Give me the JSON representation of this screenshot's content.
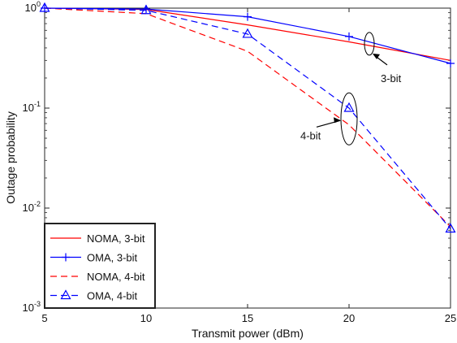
{
  "chart_data": {
    "type": "line",
    "title": "",
    "xlabel": "Transmit power (dBm)",
    "ylabel": "Outage probability",
    "x": [
      5,
      10,
      15,
      20,
      25
    ],
    "xlim": [
      5,
      25
    ],
    "ylim": [
      0.001,
      1
    ],
    "yscale": "log",
    "xticks": [
      "5",
      "10",
      "15",
      "20",
      "25"
    ],
    "yticks": [
      {
        "base": "10",
        "exp": "-3"
      },
      {
        "base": "10",
        "exp": "-2"
      },
      {
        "base": "10",
        "exp": "-1"
      },
      {
        "base": "10",
        "exp": "0"
      }
    ],
    "grid": false,
    "legend_position": "bottom-left",
    "series": [
      {
        "name": "NOMA, 3-bit",
        "color": "#ff0000",
        "dash": "solid",
        "marker": "none",
        "values": [
          1.0,
          0.97,
          0.68,
          0.46,
          0.3
        ]
      },
      {
        "name": "OMA, 3-bit",
        "color": "#0000ff",
        "dash": "solid",
        "marker": "plus",
        "values": [
          1.0,
          0.98,
          0.82,
          0.52,
          0.28
        ]
      },
      {
        "name": "NOMA, 4-bit",
        "color": "#ff0000",
        "dash": "dashed",
        "marker": "none",
        "values": [
          1.0,
          0.88,
          0.37,
          0.068,
          0.0065
        ]
      },
      {
        "name": "OMA, 4-bit",
        "color": "#0000ff",
        "dash": "dashed",
        "marker": "triangle",
        "values": [
          1.0,
          0.95,
          0.55,
          0.1,
          0.0062
        ]
      }
    ],
    "annotations": [
      {
        "text": "3-bit",
        "x": 21,
        "y": 0.44
      },
      {
        "text": "4-bit",
        "x": 20,
        "y": 0.078
      }
    ]
  }
}
